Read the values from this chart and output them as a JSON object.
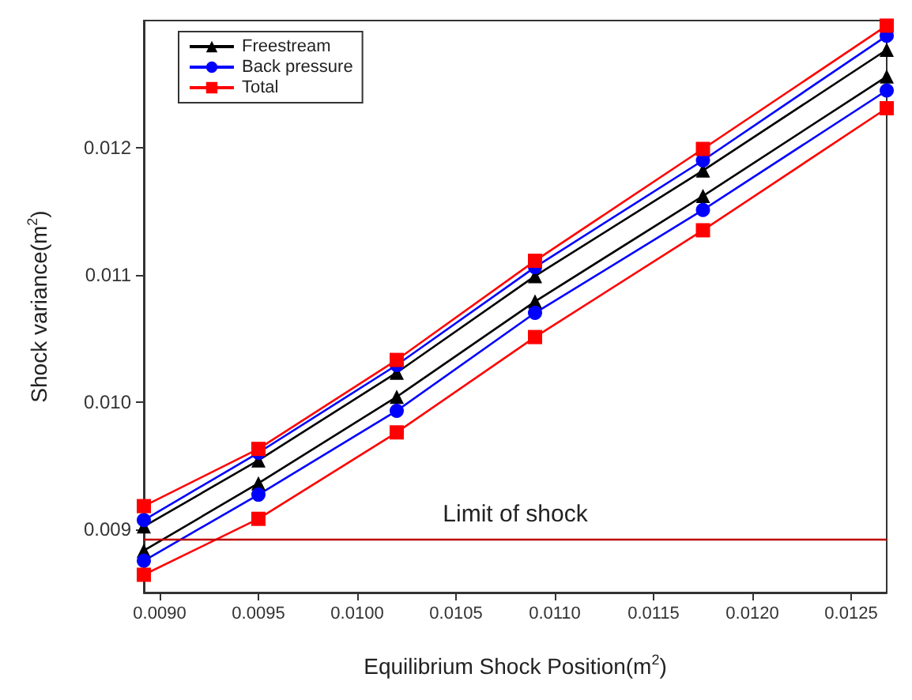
{
  "chart_data": {
    "type": "line",
    "xlabel": "Equilibrium Shock Position(m$^{2}$)",
    "ylabel": "Shock variance(m$^{2}$)",
    "x": [
      0.00892,
      0.0095,
      0.0102,
      0.0109,
      0.01175,
      0.01268
    ],
    "series": [
      {
        "name": "Freestream",
        "color": "#000000",
        "marker": "triangle",
        "values": [
          0.00902,
          0.00954,
          0.01023,
          0.01099,
          0.01182,
          0.01277
        ]
      },
      {
        "name": "Back pressure",
        "color": "#0000ff",
        "marker": "circle",
        "values": [
          0.00907,
          0.0096,
          0.01029,
          0.01106,
          0.0119,
          0.01288
        ]
      },
      {
        "name": "Total",
        "color": "#ff0000",
        "marker": "square",
        "values": [
          0.00918,
          0.00963,
          0.01033,
          0.01111,
          0.01199,
          0.01296
        ]
      },
      {
        "color": "#000000",
        "marker": "triangle",
        "values": [
          0.00883,
          0.00936,
          0.01004,
          0.01079,
          0.01162,
          0.01256
        ]
      },
      {
        "color": "#0000ff",
        "marker": "circle",
        "values": [
          0.00875,
          0.00927,
          0.00993,
          0.0107,
          0.01151,
          0.01245
        ]
      },
      {
        "color": "#ff0000",
        "marker": "square",
        "values": [
          0.00864,
          0.00908,
          0.00976,
          0.01051,
          0.01135,
          0.01231
        ]
      }
    ],
    "xlim": [
      0.00892,
      0.01268
    ],
    "xticks": [
      {
        "value": 0.009,
        "label": "0.0090"
      },
      {
        "value": 0.0095,
        "label": "0.0095"
      },
      {
        "value": 0.01,
        "label": "0.0100"
      },
      {
        "value": 0.0105,
        "label": "0.0105"
      },
      {
        "value": 0.011,
        "label": "0.0110"
      },
      {
        "value": 0.0115,
        "label": "0.0115"
      },
      {
        "value": 0.012,
        "label": "0.0120"
      },
      {
        "value": 0.0125,
        "label": "0.0125"
      }
    ],
    "ylim": [
      0.0085,
      0.013
    ],
    "yticks": [
      0.009,
      {
        "value": 0.01,
        "label": "0.010"
      },
      0.011,
      0.012
    ],
    "ref_lines": [
      {
        "axis": "y",
        "value": 0.00892,
        "label": "Limit of shock",
        "color": "#c00000"
      }
    ],
    "legend": "top left",
    "grid": false,
    "line_style": "solid"
  }
}
